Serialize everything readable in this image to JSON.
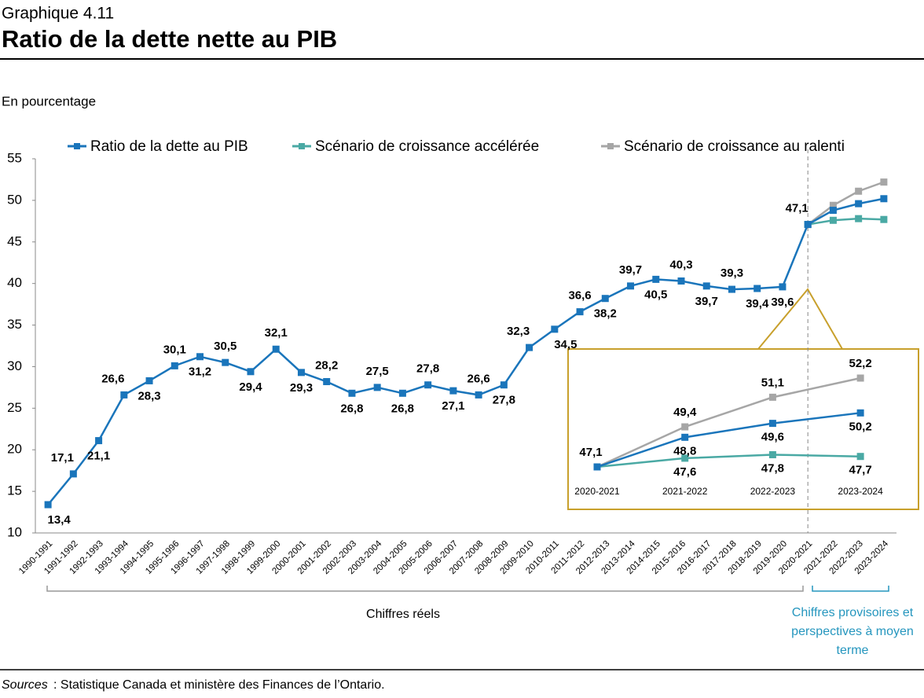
{
  "chart_data": {
    "type": "line",
    "label": "Graphique 4.11",
    "title": "Ratio de la dette nette au PIB",
    "y_label": "En pourcentage",
    "categories": [
      "1990-1991",
      "1991-1992",
      "1992-1993",
      "1993-1994",
      "1994-1995",
      "1995-1996",
      "1996-1997",
      "1997-1998",
      "1998-1999",
      "1999-2000",
      "2000-2001",
      "2001-2002",
      "2002-2003",
      "2003-2004",
      "2004-2005",
      "2005-2006",
      "2006-2007",
      "2007-2008",
      "2008-2009",
      "2009-2010",
      "2010-2011",
      "2011-2012",
      "2012-2013",
      "2013-2014",
      "2014-2015",
      "2015-2016",
      "2016-2017",
      "2017-2018",
      "2018-2019",
      "2019-2020",
      "2020-2021",
      "2021-2022",
      "2022-2023",
      "2023-2024"
    ],
    "series": [
      {
        "name": "Ratio de la dette au PIB",
        "color": "#1a75bb",
        "values": [
          13.4,
          17.1,
          21.1,
          26.6,
          28.3,
          30.1,
          31.2,
          30.5,
          29.4,
          32.1,
          29.3,
          28.2,
          26.8,
          27.5,
          26.8,
          27.8,
          27.1,
          26.6,
          27.8,
          32.3,
          34.5,
          36.6,
          38.2,
          39.7,
          40.5,
          40.3,
          39.7,
          39.3,
          39.4,
          39.6,
          47.1,
          48.8,
          49.6,
          50.2
        ],
        "value_labels": [
          "13,4",
          "17,1",
          "21,1",
          "26,6",
          "28,3",
          "30,1",
          "31,2",
          "30,5",
          "29,4",
          "32,1",
          "29,3",
          "28,2",
          "26,8",
          "27,5",
          "26,8",
          "27,8",
          "27,1",
          "26,6",
          "27,8",
          "32,3",
          "34,5",
          "36,6",
          "38,2",
          "39,7",
          "40,5",
          "40,3",
          "39,7",
          "39,3",
          "39,4",
          "39,6",
          "47,1",
          "48,8",
          "49,6",
          "50,2"
        ]
      },
      {
        "name": "Scénario de croissance accélérée",
        "color": "#4aa9a4",
        "values": [
          null,
          null,
          null,
          null,
          null,
          null,
          null,
          null,
          null,
          null,
          null,
          null,
          null,
          null,
          null,
          null,
          null,
          null,
          null,
          null,
          null,
          null,
          null,
          null,
          null,
          null,
          null,
          null,
          null,
          null,
          47.1,
          47.6,
          47.8,
          47.7
        ],
        "value_labels": [
          null,
          null,
          null,
          null,
          null,
          null,
          null,
          null,
          null,
          null,
          null,
          null,
          null,
          null,
          null,
          null,
          null,
          null,
          null,
          null,
          null,
          null,
          null,
          null,
          null,
          null,
          null,
          null,
          null,
          null,
          null,
          "47,6",
          "47,8",
          "47,7"
        ]
      },
      {
        "name": "Scénario de croissance au ralenti",
        "color": "#a6a6a6",
        "values": [
          null,
          null,
          null,
          null,
          null,
          null,
          null,
          null,
          null,
          null,
          null,
          null,
          null,
          null,
          null,
          null,
          null,
          null,
          null,
          null,
          null,
          null,
          null,
          null,
          null,
          null,
          null,
          null,
          null,
          null,
          47.1,
          49.4,
          51.1,
          52.2
        ],
        "value_labels": [
          null,
          null,
          null,
          null,
          null,
          null,
          null,
          null,
          null,
          null,
          null,
          null,
          null,
          null,
          null,
          null,
          null,
          null,
          null,
          null,
          null,
          null,
          null,
          null,
          null,
          null,
          null,
          null,
          null,
          null,
          null,
          "49,4",
          "51,1",
          "52,2"
        ]
      }
    ],
    "ylim": [
      10,
      55
    ],
    "yticks": [
      10,
      15,
      20,
      25,
      30,
      35,
      40,
      45,
      50,
      55
    ],
    "grid": false,
    "legend": "top",
    "annotations": [
      "Chiffres réels",
      "Chiffres provisoires et perspectives à moyen terme"
    ],
    "source_label": "Sources",
    "source": ": Statistique Canada et ministère des Finances de l’Ontario."
  }
}
